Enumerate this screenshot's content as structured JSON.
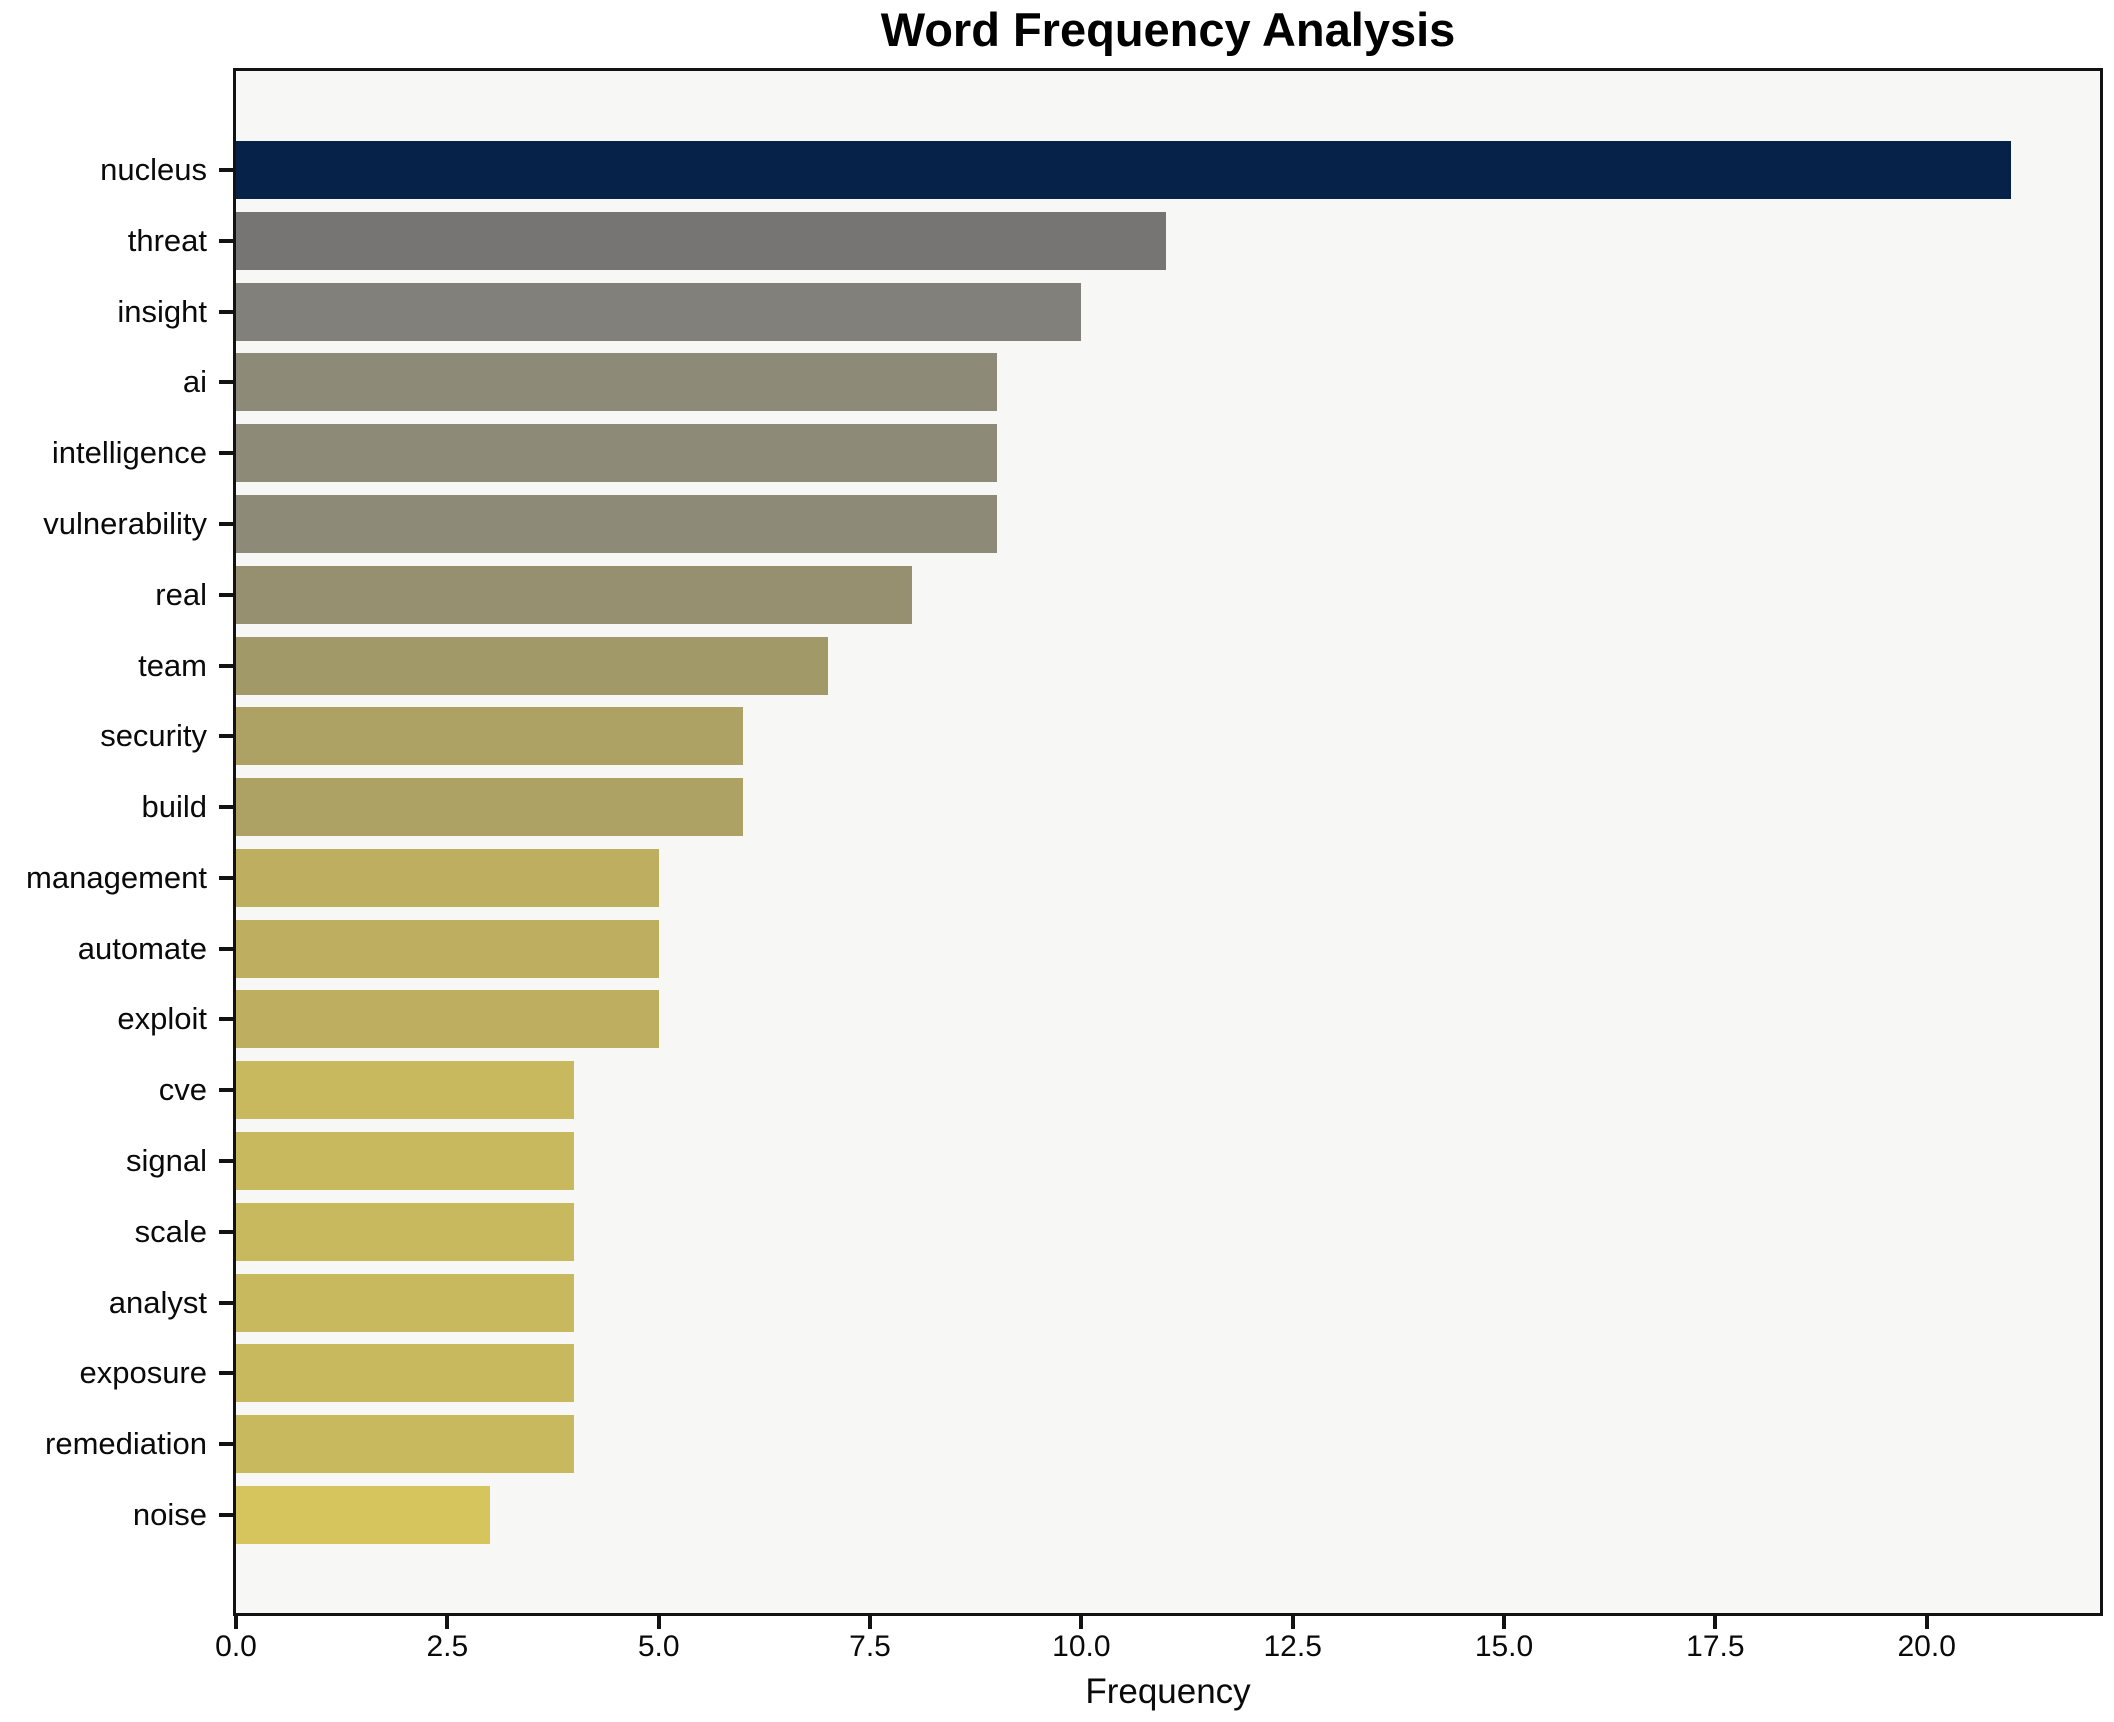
{
  "chart_data": {
    "type": "bar",
    "orientation": "horizontal",
    "title": "Word Frequency Analysis",
    "xlabel": "Frequency",
    "ylabel": "",
    "categories": [
      "nucleus",
      "threat",
      "insight",
      "ai",
      "intelligence",
      "vulnerability",
      "real",
      "team",
      "security",
      "build",
      "management",
      "automate",
      "exploit",
      "cve",
      "signal",
      "scale",
      "analyst",
      "exposure",
      "remediation",
      "noise"
    ],
    "values": [
      21,
      11,
      10,
      9,
      9,
      9,
      8,
      7,
      6,
      6,
      5,
      5,
      5,
      4,
      4,
      4,
      4,
      4,
      4,
      3
    ],
    "bar_colors": [
      "#062248",
      "#767573",
      "#82807a",
      "#8e8a78",
      "#8e8a78",
      "#8e8a78",
      "#968f70",
      "#a29969",
      "#ada264",
      "#ada264",
      "#bdae60",
      "#bdae60",
      "#bdae60",
      "#c9b95e",
      "#c9b95e",
      "#c9b95e",
      "#c9b95e",
      "#c9b95e",
      "#c9b95e",
      "#d6c45c"
    ],
    "xlim": [
      0,
      22.05
    ],
    "xticks": [
      0,
      2.5,
      5,
      7.5,
      10,
      12.5,
      15,
      17.5,
      20
    ],
    "xtick_labels": [
      "0.0",
      "2.5",
      "5.0",
      "7.5",
      "10.0",
      "12.5",
      "15.0",
      "17.5",
      "20.0"
    ],
    "grid": false,
    "legend": false,
    "plot_bg": "#f7f7f6",
    "fig_bg": "#ffffff",
    "spine_color": "#121212"
  }
}
